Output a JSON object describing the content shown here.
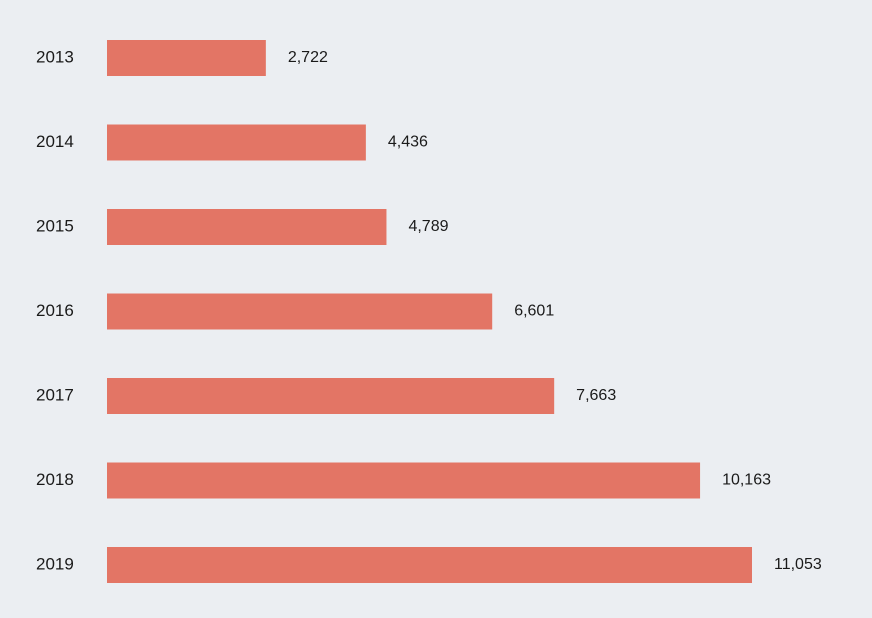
{
  "chart_data": {
    "type": "bar",
    "orientation": "horizontal",
    "categories": [
      "2013",
      "2014",
      "2015",
      "2016",
      "2017",
      "2018",
      "2019"
    ],
    "values": [
      2722,
      4436,
      4789,
      6601,
      7663,
      10163,
      11053
    ],
    "value_labels": [
      "2,722",
      "4,436",
      "4,789",
      "6,601",
      "7,663",
      "10,163",
      "11,053"
    ],
    "bar_color": "#e37565",
    "background_color": "#ebeef2",
    "grid": false,
    "legend": "none"
  }
}
